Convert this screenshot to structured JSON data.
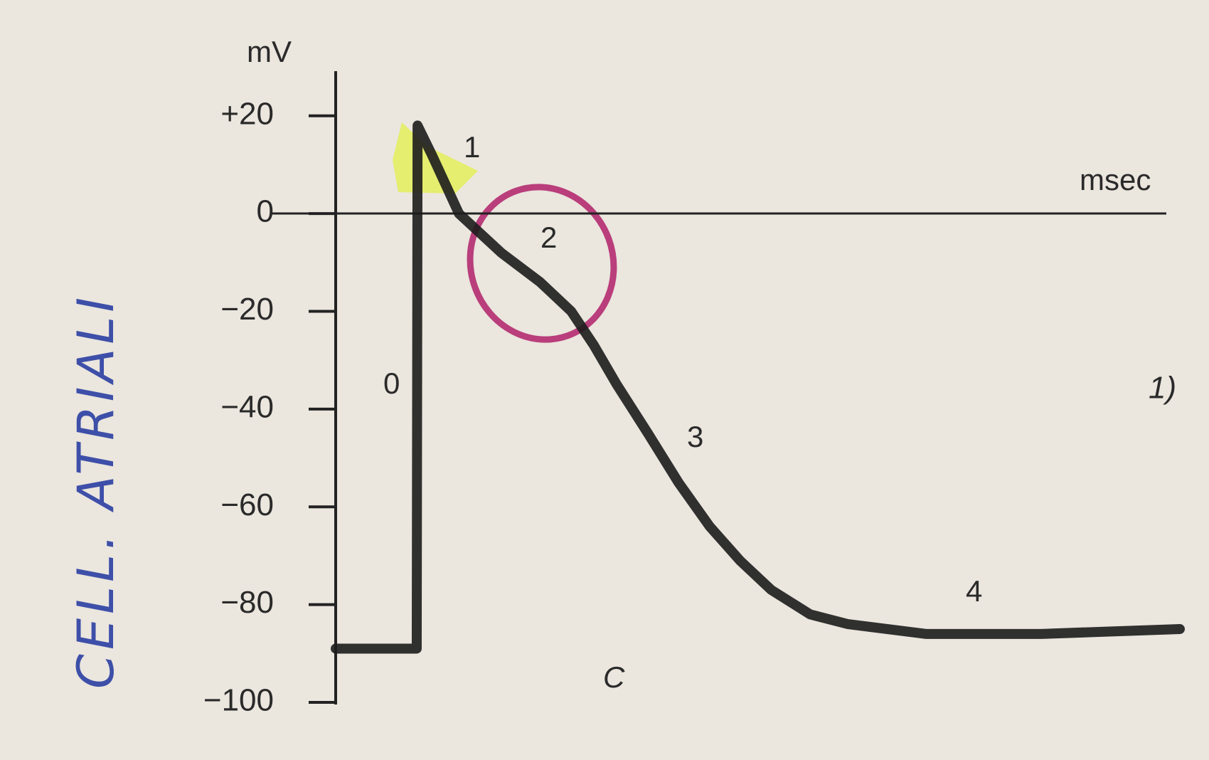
{
  "chart_data": {
    "type": "line",
    "y_label": "mV",
    "x_label": "msec",
    "phase_labels": [
      "0",
      "1",
      "2",
      "3",
      "4"
    ],
    "figure_label": "C",
    "handwritten_title": "CELL. ATRIALI",
    "handwritten_note": "1)",
    "x": [
      0,
      9.6,
      9.7,
      11.4,
      14.6,
      19.6,
      24.2,
      27.9,
      30.6,
      33.3,
      37.0,
      40.6,
      44.3,
      47.9,
      51.6,
      56.2,
      60.7,
      69.9,
      83.6,
      100
    ],
    "values": [
      -89,
      -89,
      18,
      12,
      0,
      -8,
      -14,
      -20,
      -27,
      -35,
      -45,
      -55,
      -64,
      -71,
      -77,
      -82,
      -84,
      -86,
      -86,
      -85
    ],
    "color": "#1c1c1c",
    "xlim": [
      0,
      100
    ],
    "ylim": [
      -100,
      30
    ],
    "yticks": [
      {
        "value": 20,
        "label": "+20"
      },
      0,
      {
        "value": -20,
        "label": "−20"
      },
      {
        "value": -40,
        "label": "−40"
      },
      {
        "value": -60,
        "label": "−60"
      },
      {
        "value": -80,
        "label": "−80"
      },
      {
        "value": -100,
        "label": "−100"
      }
    ]
  }
}
